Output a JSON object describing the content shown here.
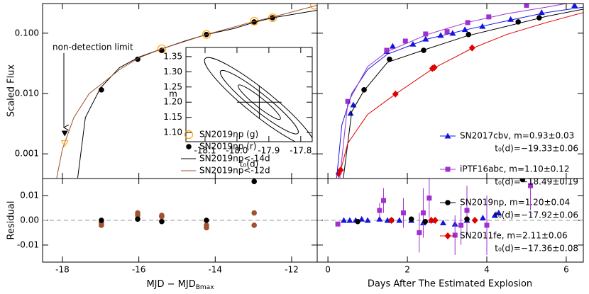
{
  "chart_data": [
    {
      "type": "scatter",
      "ylabel": "Scaled Flux",
      "ylog": true,
      "annotation": "non-detection limit",
      "xlim": [
        -18.52,
        -11.33
      ],
      "ylim": [
        0.00039,
        0.31
      ],
      "yticks": [
        0.001,
        {
          "value": 0.01,
          "label": "0.010"
        },
        {
          "value": 0.1,
          "label": "0.100"
        }
      ],
      "series": [
        {
          "name": "SN2019np (g)",
          "color": "#ffa500",
          "marker": "circle-open",
          "x": [
            -15.4,
            -14.23,
            -12.98,
            -12.5,
            -11.4
          ],
          "values": [
            0.055,
            0.095,
            0.158,
            0.18,
            0.29
          ]
        },
        {
          "name": "SN2019np (r)",
          "color": "#000000",
          "marker": "circle",
          "x": [
            -16.98,
            -16.03,
            -15.4,
            -14.23,
            -12.98,
            -12.5
          ],
          "values": [
            0.0115,
            0.037,
            0.052,
            0.095,
            0.154,
            0.18
          ]
        },
        {
          "name": "SN2019np<-14d",
          "color": "#000000",
          "marker": "line",
          "x": [
            -17.6,
            -17.4,
            -17.0,
            -16.5,
            -16.0,
            -15.4,
            -14.8,
            -14.23,
            -13.5,
            -13.0,
            -12.5,
            -11.33
          ],
          "values": [
            0.0004,
            0.004,
            0.0125,
            0.027,
            0.04,
            0.055,
            0.074,
            0.095,
            0.12,
            0.15,
            0.18,
            0.24
          ]
        },
        {
          "name": "SN2019np<-12d",
          "color": "#a0522d",
          "marker": "line",
          "x": [
            -18.15,
            -18.0,
            -17.7,
            -17.3,
            -17.0,
            -16.5,
            -16.0,
            -15.4,
            -14.23,
            -13.0,
            -12.5,
            -11.33
          ],
          "values": [
            0.0004,
            0.0012,
            0.004,
            0.01,
            0.014,
            0.025,
            0.039,
            0.055,
            0.095,
            0.155,
            0.185,
            0.29
          ]
        },
        {
          "color": "#000000",
          "marker": "triangle-down",
          "x": [
            -17.94
          ],
          "values": [
            0.0022
          ]
        },
        {
          "color": "#ffa500",
          "marker": "triangle-down-open",
          "x": [
            -17.94
          ],
          "values": [
            0.0015
          ]
        }
      ]
    },
    {
      "type": "scatter",
      "xlabel": "MJD − MJD",
      "xlabel_sub": "Bmax",
      "ylabel": "Residual",
      "zero_line": true,
      "xlim": [
        -18.52,
        -11.33
      ],
      "ylim": [
        -0.0169,
        0.0169
      ],
      "xticks": [
        -18,
        -16,
        -14,
        -12
      ],
      "yticks": [
        -0.01,
        {
          "value": 0,
          "label": "0.00"
        },
        0.01
      ],
      "series": [
        {
          "color": "#a0522d",
          "marker": "circle",
          "x": [
            -16.98,
            -16.98,
            -16.03,
            -16.03,
            -15.4,
            -15.4,
            -14.23,
            -14.23,
            -12.98,
            -12.98
          ],
          "values": [
            -0.001,
            -0.002,
            0.003,
            0.002,
            0.002,
            0.0015,
            -0.002,
            -0.003,
            0.003,
            -0.002
          ]
        },
        {
          "color": "#000000",
          "marker": "circle",
          "x": [
            -16.98,
            -16.03,
            -15.4,
            -14.23,
            -12.98
          ],
          "values": [
            0.0,
            0.0005,
            -0.0005,
            0.0,
            0.0157
          ],
          "errors": [
            0.001,
            0.0005,
            0.0005,
            0.0005,
            0.0005
          ]
        }
      ]
    },
    {
      "type": "scatter",
      "ylog": true,
      "xlim": [
        -0.27,
        6.43
      ],
      "ylim": [
        0.00039,
        0.31
      ],
      "series": [
        {
          "name": "SN2017cbv, m=0.93±0.03",
          "fit": "t₀(d)=−19.33±0.06",
          "color": "#1515e0",
          "marker": "triangle",
          "x": [
            0.57,
            0.64,
            1.48,
            1.63,
            2.14,
            2.46,
            2.84,
            3.14,
            3.45,
            3.89,
            4.6,
            5.38,
            6.21
          ],
          "values": [
            0.0047,
            0.0065,
            0.05,
            0.061,
            0.066,
            0.08,
            0.092,
            0.1,
            0.115,
            0.13,
            0.17,
            0.22,
            0.29
          ]
        },
        {
          "name": "iPTF16abc, m=1.10±0.12",
          "fit": "t₀(d)=−18.49±0.19",
          "color": "#a030d0",
          "marker": "square",
          "x": [
            0.5,
            1.48,
            1.95,
            2.46,
            3.0,
            3.52,
            4.05,
            5.0
          ],
          "values": [
            0.0074,
            0.052,
            0.074,
            0.097,
            0.106,
            0.15,
            0.186,
            0.29
          ]
        },
        {
          "name": "SN2019np, m=1.20±0.04",
          "fit": "t₀(d)=−17.92±0.06",
          "color": "#000000",
          "marker": "circle",
          "x": [
            0.91,
            1.55,
            2.41,
            3.54,
            4.79,
            5.32
          ],
          "values": [
            0.0115,
            0.037,
            0.052,
            0.095,
            0.154,
            0.18
          ]
        },
        {
          "name": "SN2011fe, m=2.11±0.06",
          "fit": "t₀(d)=−17.36±0.08",
          "color": "#e00000",
          "marker": "diamond",
          "x": [
            0.27,
            0.32,
            1.7,
            2.63,
            2.68,
            3.63
          ],
          "values": [
            0.00047,
            0.00054,
            0.0098,
            0.026,
            0.027,
            0.057
          ]
        },
        {
          "color": "#1515e0",
          "marker": "line",
          "x": [
            0.22,
            0.35,
            0.6,
            1.0,
            1.5,
            2.5,
            3.5,
            4.5,
            5.5,
            6.43
          ],
          "values": [
            0.0004,
            0.003,
            0.01,
            0.025,
            0.045,
            0.08,
            0.115,
            0.16,
            0.22,
            0.27
          ]
        },
        {
          "color": "#a030d0",
          "marker": "line",
          "x": [
            0.3,
            0.5,
            1.0,
            1.5,
            2.5,
            3.5,
            4.5,
            5.5,
            6.0
          ],
          "values": [
            0.0004,
            0.007,
            0.028,
            0.05,
            0.095,
            0.15,
            0.21,
            0.27,
            0.31
          ]
        },
        {
          "color": "#000000",
          "marker": "line",
          "x": [
            0.39,
            0.6,
            0.9,
            1.5,
            2.5,
            3.5,
            4.5,
            5.5,
            6.43
          ],
          "values": [
            0.0004,
            0.005,
            0.011,
            0.033,
            0.055,
            0.09,
            0.13,
            0.19,
            0.25
          ]
        },
        {
          "color": "#e00000",
          "marker": "line",
          "x": [
            0.27,
            0.5,
            1.0,
            1.7,
            2.65,
            3.6,
            4.5,
            5.5,
            6.43
          ],
          "values": [
            0.0004,
            0.0015,
            0.0045,
            0.0098,
            0.026,
            0.055,
            0.095,
            0.15,
            0.22
          ]
        }
      ]
    },
    {
      "type": "scatter",
      "xlabel": "Days After The Estimated Explosion",
      "zero_line": true,
      "xlim": [
        -0.27,
        6.43
      ],
      "ylim": [
        -0.0169,
        0.0169
      ],
      "xticks": [
        0,
        2,
        4,
        6
      ],
      "series": [
        {
          "color": "#1515e0",
          "marker": "triangle",
          "x": [
            0.4,
            0.55,
            0.7,
            0.85,
            1.0,
            1.3,
            1.5,
            1.8,
            2.1,
            2.4,
            2.6,
            2.9,
            3.2,
            3.5,
            3.9,
            4.2,
            4.3
          ],
          "values": [
            0.0,
            0.0,
            0.0,
            0.0005,
            0.0,
            0.0005,
            0.0,
            0.0,
            0.0,
            -0.001,
            0.0,
            -0.001,
            -0.0015,
            0.0,
            0.001,
            0.002,
            0.003
          ]
        },
        {
          "color": "#a030d0",
          "marker": "square",
          "x": [
            0.25,
            1.3,
            1.4,
            1.9,
            2.3,
            2.4,
            2.55,
            3.2,
            3.35,
            3.5,
            4.0,
            5.1
          ],
          "values": [
            -0.0015,
            0.004,
            0.008,
            0.003,
            -0.005,
            0.003,
            0.009,
            -0.006,
            -0.002,
            0.004,
            -0.002,
            0.014
          ],
          "errors": [
            0.001,
            0.003,
            0.005,
            0.006,
            0.008,
            0.01,
            0.008,
            0.008,
            0.008,
            0.01,
            0.012,
            0.01
          ]
        },
        {
          "color": "#000000",
          "marker": "circle",
          "x": [
            0.75,
            1.6,
            2.1,
            2.45,
            3.5,
            4.9
          ],
          "values": [
            -0.0005,
            0.0,
            0.0005,
            -0.0005,
            0.0005,
            0.0165
          ]
        },
        {
          "color": "#e00000",
          "marker": "diamond",
          "x": [
            1.6,
            2.6,
            2.7,
            3.7
          ],
          "values": [
            0.0,
            0.0,
            0.0,
            0.0
          ]
        }
      ]
    },
    {
      "type": "scatter",
      "xlabel": "t₀(d)",
      "ylabel": "m",
      "xlim": [
        -18.16,
        -17.764
      ],
      "ylim": [
        1.07,
        1.38
      ],
      "xticks": [
        -18.1,
        {
          "value": -18,
          "label": "-18.0"
        },
        -17.9,
        -17.8
      ],
      "yticks": [
        {
          "value": 1.1,
          "label": "1.10"
        },
        1.15,
        {
          "value": 1.2,
          "label": "1.20"
        },
        1.25,
        {
          "value": 1.3,
          "label": "1.30"
        },
        1.35
      ],
      "series": [
        {
          "color": "#000000",
          "marker": "cross",
          "x": [
            -17.93
          ],
          "values": [
            1.2
          ],
          "x_errors": [
            0.07
          ],
          "errors": [
            0.055
          ]
        }
      ]
    }
  ]
}
